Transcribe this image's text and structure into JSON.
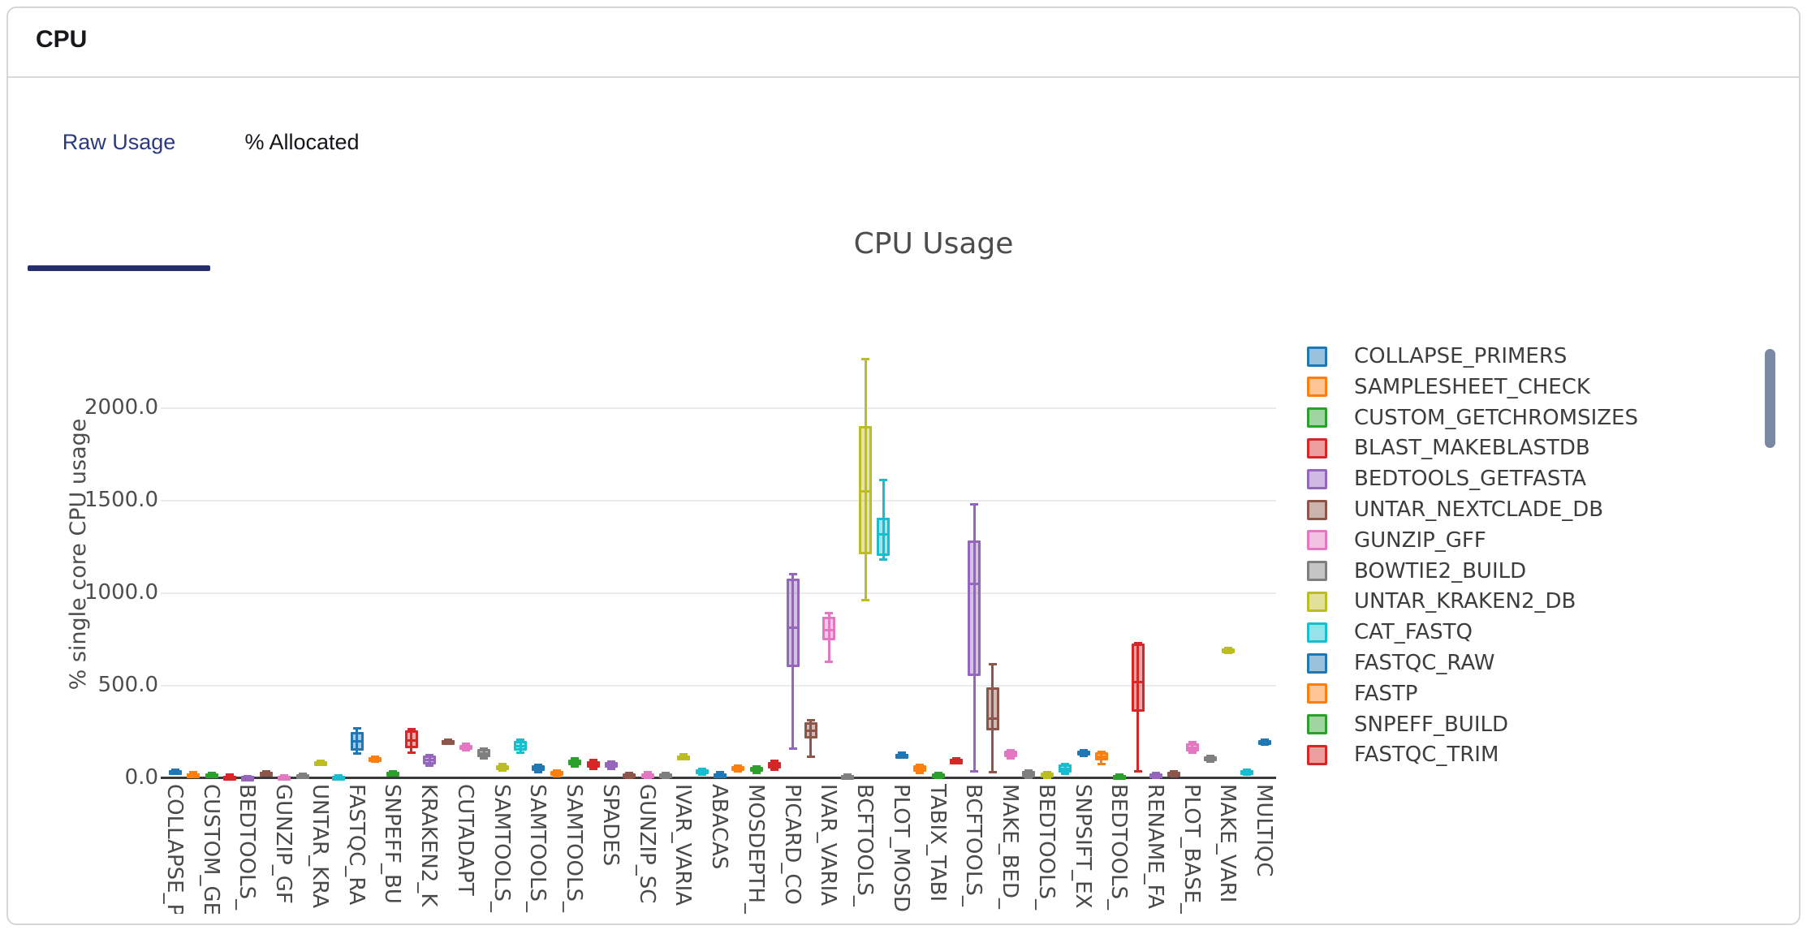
{
  "card": {
    "title": "CPU"
  },
  "tabs": {
    "items": [
      {
        "label": "Raw Usage",
        "active": true
      },
      {
        "label": "% Allocated",
        "active": false
      }
    ]
  },
  "colors": {
    "tab_active_text": "#2c3a7d",
    "tab_underline": "#232e6b",
    "card_border": "#d6d6d6",
    "scrollbar_thumb": "#7b88a3",
    "chart_text": "#4d4d4d"
  },
  "chart_data": {
    "type": "box",
    "title": "CPU Usage",
    "ylabel": "% single core CPU usage",
    "xlabel": "",
    "yticks": [
      0,
      500,
      1000,
      1500,
      2000
    ],
    "ytick_labels": [
      "0.0",
      "500.0",
      "1000.0",
      "1500.0",
      "2000.0"
    ],
    "ylim": [
      -160,
      2350
    ],
    "grid": true,
    "legend_position": "right",
    "legend_scrollable": true,
    "palette": {
      "blue": "#1f77b4",
      "orange": "#ff7f0e",
      "green": "#2ca02c",
      "red": "#d62728",
      "purple": "#9467bd",
      "brown": "#8c564b",
      "pink": "#e377c2",
      "gray": "#7f7f7f",
      "olive": "#bcbd22",
      "cyan": "#17becf"
    },
    "categories": [
      "COLLAPSE_P",
      "CUSTOM_GE",
      "BEDTOOLS_",
      "GUNZIP_GF",
      "UNTAR_KRA",
      "FASTQC_RA",
      "SNPEFF_BU",
      "KRAKEN2_K",
      "CUTADAPT",
      "SAMTOOLS_",
      "SAMTOOLS_",
      "SAMTOOLS_",
      "SPADES",
      "GUNZIP_SC",
      "IVAR_VARIA",
      "ABACAS",
      "MOSDEPTH_",
      "PICARD_CO",
      "IVAR_VARIA",
      "BCFTOOLS_",
      "PLOT_MOSD",
      "TABIX_TABI",
      "BCFTOOLS_",
      "MAKE_BED_",
      "BEDTOOLS_",
      "SNPSIFT_EX",
      "BEDTOOLS_",
      "RENAME_FA",
      "PLOT_BASE_",
      "MAKE_VARI",
      "MULTIQC"
    ],
    "boxes": [
      {
        "label": "COLLAPSE_P",
        "color": "blue",
        "low": 22,
        "q1": 25,
        "median": 32,
        "q3": 40,
        "high": 44
      },
      {
        "label": null,
        "color": "orange",
        "low": 5,
        "q1": 9,
        "median": 17,
        "q3": 26,
        "high": 30
      },
      {
        "label": "CUSTOM_GE",
        "color": "green",
        "low": 4,
        "q1": 8,
        "median": 15,
        "q3": 22,
        "high": 26
      },
      {
        "label": null,
        "color": "red",
        "low": 0,
        "q1": 1,
        "median": 6,
        "q3": 13,
        "high": 16
      },
      {
        "label": "BEDTOOLS_",
        "color": "purple",
        "low": 0,
        "q1": 1,
        "median": 4,
        "q3": 8,
        "high": 10
      },
      {
        "label": null,
        "color": "brown",
        "low": 12,
        "q1": 16,
        "median": 23,
        "q3": 31,
        "high": 34
      },
      {
        "label": "GUNZIP_GF",
        "color": "pink",
        "low": 0,
        "q1": 1,
        "median": 5,
        "q3": 10,
        "high": 12
      },
      {
        "label": null,
        "color": "gray",
        "low": 0,
        "q1": 2,
        "median": 9,
        "q3": 18,
        "high": 21
      },
      {
        "label": "UNTAR_KRA",
        "color": "olive",
        "low": 70,
        "q1": 73,
        "median": 80,
        "q3": 88,
        "high": 91
      },
      {
        "label": null,
        "color": "cyan",
        "low": 0,
        "q1": 1,
        "median": 6,
        "q3": 13,
        "high": 15
      },
      {
        "label": "FASTQC_RA",
        "color": "blue",
        "low": 132,
        "q1": 145,
        "median": 198,
        "q3": 246,
        "high": 268
      },
      {
        "label": null,
        "color": "orange",
        "low": 88,
        "q1": 93,
        "median": 101,
        "q3": 110,
        "high": 113
      },
      {
        "label": "SNPEFF_BU",
        "color": "green",
        "low": 13,
        "q1": 17,
        "median": 24,
        "q3": 31,
        "high": 34
      },
      {
        "label": null,
        "color": "red",
        "low": 137,
        "q1": 160,
        "median": 200,
        "q3": 255,
        "high": 264
      },
      {
        "label": "KRAKEN2_K",
        "color": "purple",
        "low": 65,
        "q1": 73,
        "median": 95,
        "q3": 119,
        "high": 125
      },
      {
        "label": null,
        "color": "brown",
        "low": 185,
        "q1": 189,
        "median": 196,
        "q3": 203,
        "high": 207
      },
      {
        "label": "CUTADAPT",
        "color": "pink",
        "low": 150,
        "q1": 155,
        "median": 168,
        "q3": 180,
        "high": 184
      },
      {
        "label": null,
        "color": "gray",
        "low": 104,
        "q1": 110,
        "median": 132,
        "q3": 155,
        "high": 160
      },
      {
        "label": "SAMTOOLS_",
        "color": "olive",
        "low": 40,
        "q1": 44,
        "median": 57,
        "q3": 70,
        "high": 74
      },
      {
        "label": null,
        "color": "cyan",
        "low": 138,
        "q1": 145,
        "median": 170,
        "q3": 198,
        "high": 205
      },
      {
        "label": "SAMTOOLS_",
        "color": "blue",
        "low": 30,
        "q1": 36,
        "median": 51,
        "q3": 66,
        "high": 70
      },
      {
        "label": null,
        "color": "orange",
        "low": 9,
        "q1": 13,
        "median": 24,
        "q3": 36,
        "high": 40
      },
      {
        "label": "SAMTOOLS_",
        "color": "green",
        "low": 60,
        "q1": 66,
        "median": 84,
        "q3": 101,
        "high": 106
      },
      {
        "label": null,
        "color": "red",
        "low": 49,
        "q1": 55,
        "median": 73,
        "q3": 92,
        "high": 97
      },
      {
        "label": "SPADES",
        "color": "purple",
        "low": 47,
        "q1": 53,
        "median": 68,
        "q3": 84,
        "high": 89
      },
      {
        "label": null,
        "color": "brown",
        "low": 0,
        "q1": 2,
        "median": 12,
        "q3": 22,
        "high": 26
      },
      {
        "label": "GUNZIP_SC",
        "color": "pink",
        "low": 0,
        "q1": 2,
        "median": 14,
        "q3": 26,
        "high": 30
      },
      {
        "label": null,
        "color": "gray",
        "low": 0,
        "q1": 2,
        "median": 12,
        "q3": 22,
        "high": 26
      },
      {
        "label": "IVAR_VARIA",
        "color": "olive",
        "low": 100,
        "q1": 105,
        "median": 113,
        "q3": 122,
        "high": 126
      },
      {
        "label": null,
        "color": "cyan",
        "low": 17,
        "q1": 22,
        "median": 33,
        "q3": 44,
        "high": 48
      },
      {
        "label": "ABACAS",
        "color": "blue",
        "low": 4,
        "q1": 8,
        "median": 17,
        "q3": 26,
        "high": 30
      },
      {
        "label": null,
        "color": "orange",
        "low": 35,
        "q1": 40,
        "median": 51,
        "q3": 62,
        "high": 66
      },
      {
        "label": "MOSDEPTH_",
        "color": "green",
        "low": 27,
        "q1": 32,
        "median": 45,
        "q3": 59,
        "high": 63
      },
      {
        "label": null,
        "color": "red",
        "low": 44,
        "q1": 50,
        "median": 68,
        "q3": 87,
        "high": 92
      },
      {
        "label": "PICARD_CO",
        "color": "purple",
        "low": 158,
        "q1": 598,
        "median": 813,
        "q3": 1077,
        "high": 1103
      },
      {
        "label": null,
        "color": "brown",
        "low": 114,
        "q1": 211,
        "median": 255,
        "q3": 303,
        "high": 310
      },
      {
        "label": "IVAR_VARIA",
        "color": "pink",
        "low": 629,
        "q1": 743,
        "median": 800,
        "q3": 870,
        "high": 892
      },
      {
        "label": null,
        "color": "gray",
        "low": 0,
        "q1": 2,
        "median": 9,
        "q3": 16,
        "high": 19
      },
      {
        "label": "BCFTOOLS_",
        "color": "olive",
        "low": 960,
        "q1": 1210,
        "median": 1550,
        "q3": 1905,
        "high": 2265
      },
      {
        "label": null,
        "color": "cyan",
        "low": 1180,
        "q1": 1200,
        "median": 1320,
        "q3": 1410,
        "high": 1610
      },
      {
        "label": "PLOT_MOSD",
        "color": "blue",
        "low": 110,
        "q1": 115,
        "median": 122,
        "q3": 130,
        "high": 134
      },
      {
        "label": null,
        "color": "orange",
        "low": 28,
        "q1": 32,
        "median": 49,
        "q3": 66,
        "high": 70
      },
      {
        "label": "TABIX_TABI",
        "color": "green",
        "low": 0,
        "q1": 2,
        "median": 11,
        "q3": 22,
        "high": 25
      },
      {
        "label": null,
        "color": "red",
        "low": 84,
        "q1": 88,
        "median": 95,
        "q3": 101,
        "high": 105
      },
      {
        "label": "BCFTOOLS_",
        "color": "purple",
        "low": 37,
        "q1": 551,
        "median": 1050,
        "q3": 1284,
        "high": 1481
      },
      {
        "label": null,
        "color": "brown",
        "low": 29,
        "q1": 256,
        "median": 320,
        "q3": 489,
        "high": 616
      },
      {
        "label": "MAKE_BED_",
        "color": "pink",
        "low": 106,
        "q1": 111,
        "median": 128,
        "q3": 146,
        "high": 150
      },
      {
        "label": null,
        "color": "gray",
        "low": 0,
        "q1": 3,
        "median": 18,
        "q3": 36,
        "high": 40
      },
      {
        "label": "BEDTOOLS_",
        "color": "olive",
        "low": 0,
        "q1": 2,
        "median": 13,
        "q3": 27,
        "high": 30
      },
      {
        "label": null,
        "color": "cyan",
        "low": 22,
        "q1": 27,
        "median": 49,
        "q3": 71,
        "high": 76
      },
      {
        "label": "SNPSIFT_EX",
        "color": "blue",
        "low": 119,
        "q1": 124,
        "median": 135,
        "q3": 146,
        "high": 150
      },
      {
        "label": null,
        "color": "orange",
        "low": 73,
        "q1": 93,
        "median": 115,
        "q3": 137,
        "high": 141
      },
      {
        "label": "BEDTOOLS_",
        "color": "green",
        "low": 0,
        "q1": 1,
        "median": 7,
        "q3": 14,
        "high": 17
      },
      {
        "label": null,
        "color": "red",
        "low": 37,
        "q1": 358,
        "median": 520,
        "q3": 726,
        "high": 731
      },
      {
        "label": "RENAME_FA",
        "color": "purple",
        "low": 2,
        "q1": 5,
        "median": 13,
        "q3": 22,
        "high": 25
      },
      {
        "label": null,
        "color": "brown",
        "low": 7,
        "q1": 11,
        "median": 21,
        "q3": 32,
        "high": 36
      },
      {
        "label": "PLOT_BASE_",
        "color": "pink",
        "low": 136,
        "q1": 142,
        "median": 164,
        "q3": 187,
        "high": 192
      },
      {
        "label": null,
        "color": "gray",
        "low": 89,
        "q1": 94,
        "median": 105,
        "q3": 116,
        "high": 120
      },
      {
        "label": "MAKE_VARI",
        "color": "olive",
        "low": 678,
        "q1": 683,
        "median": 691,
        "q3": 700,
        "high": 704
      },
      {
        "label": null,
        "color": "cyan",
        "low": 18,
        "q1": 23,
        "median": 32,
        "q3": 41,
        "high": 45
      },
      {
        "label": "MULTIQC",
        "color": "blue",
        "low": 181,
        "q1": 186,
        "median": 195,
        "q3": 204,
        "high": 208
      }
    ],
    "legend": {
      "entries": [
        {
          "label": "COLLAPSE_PRIMERS",
          "color": "blue"
        },
        {
          "label": "SAMPLESHEET_CHECK",
          "color": "orange"
        },
        {
          "label": "CUSTOM_GETCHROMSIZES",
          "color": "green"
        },
        {
          "label": "BLAST_MAKEBLASTDB",
          "color": "red"
        },
        {
          "label": "BEDTOOLS_GETFASTA",
          "color": "purple"
        },
        {
          "label": "UNTAR_NEXTCLADE_DB",
          "color": "brown"
        },
        {
          "label": "GUNZIP_GFF",
          "color": "pink"
        },
        {
          "label": "BOWTIE2_BUILD",
          "color": "gray"
        },
        {
          "label": "UNTAR_KRAKEN2_DB",
          "color": "olive"
        },
        {
          "label": "CAT_FASTQ",
          "color": "cyan"
        },
        {
          "label": "FASTQC_RAW",
          "color": "blue"
        },
        {
          "label": "FASTP",
          "color": "orange"
        },
        {
          "label": "SNPEFF_BUILD",
          "color": "green"
        },
        {
          "label": "FASTQC_TRIM",
          "color": "red"
        }
      ]
    }
  }
}
